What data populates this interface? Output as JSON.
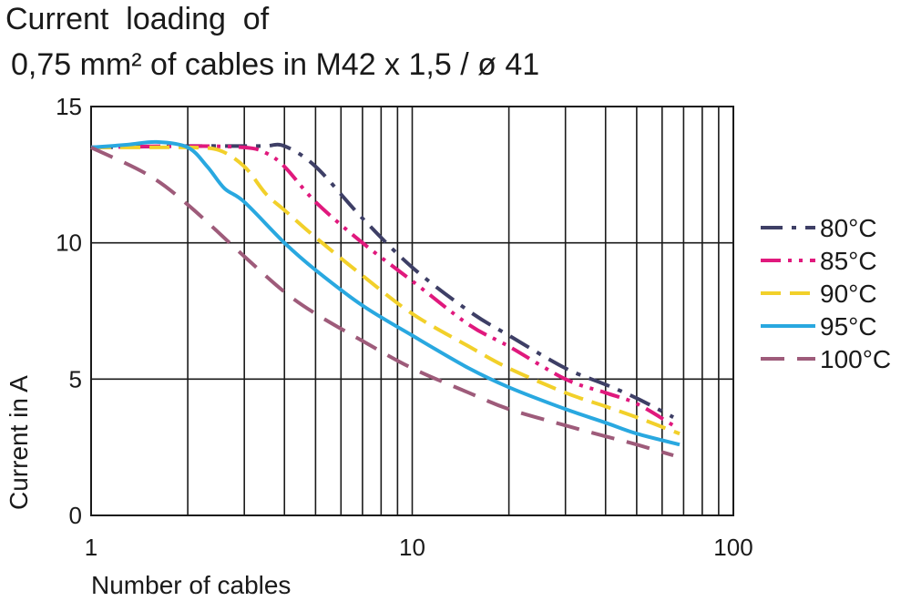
{
  "chart_data": {
    "type": "line",
    "title_line1": "Current  loading  of",
    "title_line2": "0,75 mm² of cables in M42 x 1,5 / ø 41",
    "xlabel": "Number  of  cables",
    "ylabel": "Current in A",
    "x_scale": "log",
    "xlim": [
      1,
      100
    ],
    "ylim": [
      0,
      15
    ],
    "x_ticks": [
      1,
      10,
      100
    ],
    "x_tick_labels": [
      "1",
      "10",
      "100"
    ],
    "y_ticks": [
      0,
      5,
      10,
      15
    ],
    "y_tick_labels": [
      "0",
      "5",
      "10",
      "15"
    ],
    "grid": true,
    "legend_position": "right",
    "series": [
      {
        "name": "80°C",
        "color": "#3e3f66",
        "dash": "dashdot",
        "x": [
          1,
          2,
          3,
          3.5,
          4,
          5,
          7,
          10,
          15,
          20,
          30,
          40,
          50,
          65
        ],
        "y": [
          13.5,
          13.55,
          13.55,
          13.55,
          13.55,
          12.8,
          10.9,
          9.1,
          7.5,
          6.6,
          5.4,
          4.8,
          4.3,
          3.6
        ]
      },
      {
        "name": "85°C",
        "color": "#e0197d",
        "dash": "dashdotdot",
        "x": [
          1,
          2,
          3,
          3.5,
          4,
          5,
          7,
          10,
          15,
          20,
          30,
          40,
          50,
          65
        ],
        "y": [
          13.5,
          13.55,
          13.5,
          13.3,
          12.8,
          11.5,
          10.0,
          8.6,
          7.0,
          6.2,
          5.0,
          4.5,
          4.1,
          3.3
        ]
      },
      {
        "name": "90°C",
        "color": "#f2d02a",
        "dash": "dash",
        "x": [
          1,
          1.5,
          2,
          2.5,
          3,
          3.5,
          4,
          5,
          7,
          10,
          15,
          20,
          30,
          40,
          50,
          68
        ],
        "y": [
          13.5,
          13.5,
          13.5,
          13.4,
          12.8,
          11.8,
          11.2,
          10.2,
          8.8,
          7.4,
          6.2,
          5.4,
          4.5,
          4.0,
          3.6,
          3.0
        ]
      },
      {
        "name": "95°C",
        "color": "#29a8e0",
        "dash": "solid",
        "x": [
          1,
          1.3,
          1.6,
          2,
          2.3,
          2.6,
          3,
          4,
          5,
          7,
          10,
          15,
          20,
          30,
          40,
          50,
          68
        ],
        "y": [
          13.5,
          13.6,
          13.7,
          13.5,
          12.8,
          12.0,
          11.5,
          10.0,
          9.0,
          7.7,
          6.6,
          5.4,
          4.7,
          3.9,
          3.4,
          3.0,
          2.6
        ]
      },
      {
        "name": "100°C",
        "color": "#9e5b7a",
        "dash": "longdash",
        "x": [
          1,
          1.5,
          2,
          3,
          4,
          5,
          7,
          10,
          15,
          20,
          30,
          40,
          50,
          65
        ],
        "y": [
          13.5,
          12.5,
          11.4,
          9.5,
          8.2,
          7.4,
          6.4,
          5.4,
          4.5,
          3.9,
          3.3,
          2.9,
          2.6,
          2.2
        ]
      }
    ]
  }
}
